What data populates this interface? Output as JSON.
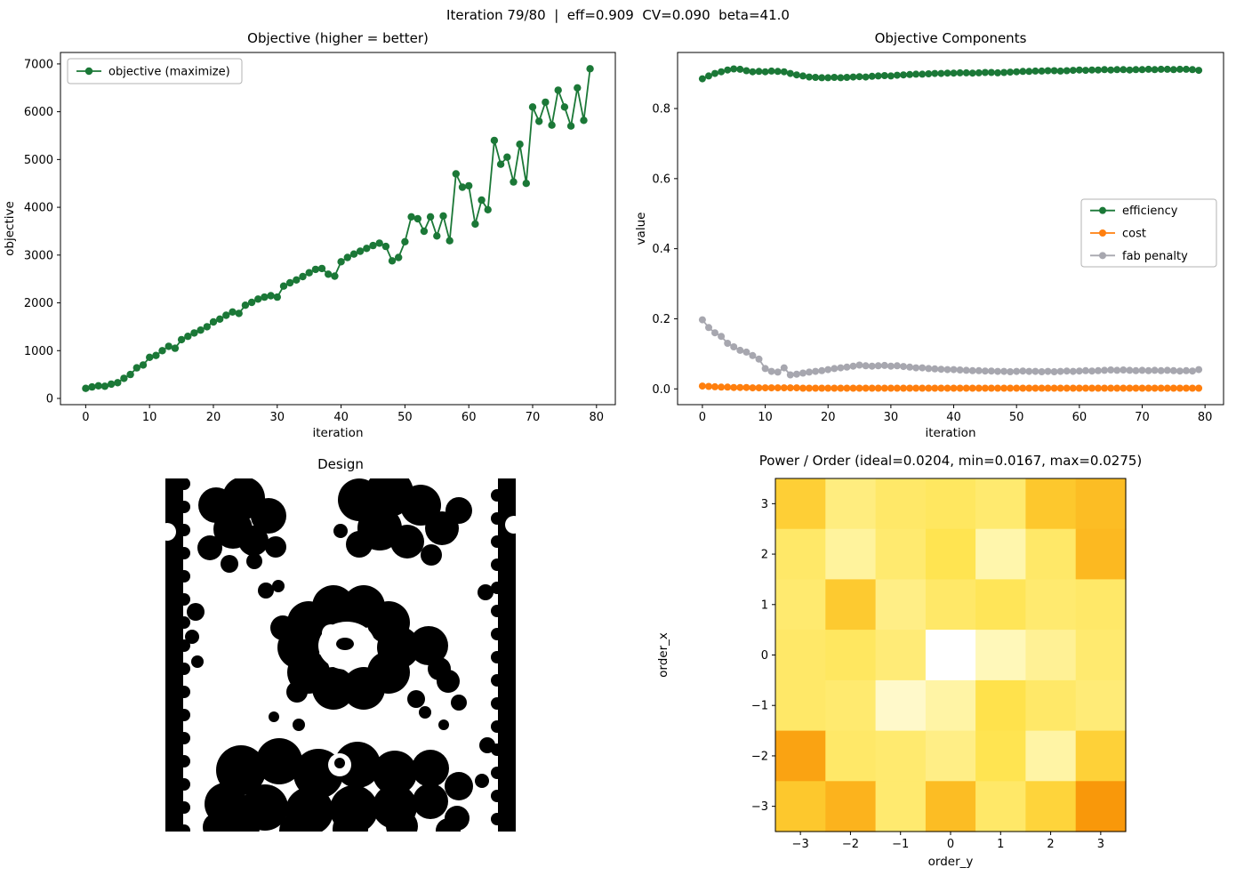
{
  "suptitle": "Iteration 79/80  |  eff=0.909  CV=0.090  beta=41.0",
  "colors": {
    "green": "#1b7837",
    "orange": "#ff7f0e",
    "gray": "#a7a7af",
    "design_fill": "#000000"
  },
  "chart_data": [
    {
      "id": "objective",
      "type": "line",
      "title": "Objective (higher = better)",
      "xlabel": "iteration",
      "ylabel": "objective",
      "xticks": [
        0,
        10,
        20,
        30,
        40,
        50,
        60,
        70,
        80
      ],
      "xtick_labels": [
        "0",
        "10",
        "20",
        "30",
        "40",
        "50",
        "60",
        "70",
        "80"
      ],
      "yticks": [
        0,
        1000,
        2000,
        3000,
        4000,
        5000,
        6000,
        7000
      ],
      "ytick_labels": [
        "0",
        "1000",
        "2000",
        "3000",
        "4000",
        "5000",
        "6000",
        "7000"
      ],
      "xlim": [
        -3.95,
        82.95
      ],
      "ylim": [
        -130,
        7240
      ],
      "legend_position": "upper-left",
      "series": [
        {
          "name": "objective (maximize)",
          "color": "#1b7837",
          "x_is_index": true,
          "y": [
            210,
            240,
            265,
            255,
            300,
            330,
            420,
            500,
            640,
            700,
            860,
            900,
            1000,
            1090,
            1050,
            1230,
            1300,
            1370,
            1430,
            1500,
            1600,
            1660,
            1740,
            1810,
            1780,
            1950,
            2010,
            2080,
            2120,
            2150,
            2120,
            2350,
            2420,
            2480,
            2550,
            2630,
            2700,
            2720,
            2600,
            2560,
            2860,
            2950,
            3020,
            3080,
            3140,
            3200,
            3250,
            3180,
            2880,
            2950,
            3280,
            3800,
            3760,
            3500,
            3800,
            3400,
            3820,
            3300,
            4700,
            4420,
            4450,
            3650,
            4150,
            3950,
            5400,
            4900,
            5050,
            4530,
            5320,
            4500,
            6100,
            5800,
            6200,
            5720,
            6450,
            6100,
            5700,
            6500,
            5820,
            6900
          ]
        }
      ]
    },
    {
      "id": "components",
      "type": "line",
      "title": "Objective Components",
      "xlabel": "iteration",
      "ylabel": "value",
      "xticks": [
        0,
        10,
        20,
        30,
        40,
        50,
        60,
        70,
        80
      ],
      "xtick_labels": [
        "0",
        "10",
        "20",
        "30",
        "40",
        "50",
        "60",
        "70",
        "80"
      ],
      "yticks": [
        0.0,
        0.2,
        0.4,
        0.6,
        0.8
      ],
      "ytick_labels": [
        "0.0",
        "0.2",
        "0.4",
        "0.6",
        "0.8"
      ],
      "xlim": [
        -3.95,
        82.95
      ],
      "ylim": [
        -0.045,
        0.96
      ],
      "legend_position": "center-right",
      "series": [
        {
          "name": "efficiency",
          "color": "#1b7837",
          "x_is_index": true,
          "y": [
            0.885,
            0.893,
            0.9,
            0.905,
            0.91,
            0.913,
            0.912,
            0.908,
            0.905,
            0.906,
            0.905,
            0.907,
            0.906,
            0.905,
            0.9,
            0.896,
            0.893,
            0.89,
            0.889,
            0.888,
            0.888,
            0.889,
            0.888,
            0.889,
            0.89,
            0.891,
            0.89,
            0.892,
            0.893,
            0.894,
            0.893,
            0.895,
            0.896,
            0.897,
            0.898,
            0.898,
            0.899,
            0.9,
            0.9,
            0.901,
            0.901,
            0.902,
            0.902,
            0.901,
            0.902,
            0.903,
            0.903,
            0.902,
            0.903,
            0.904,
            0.905,
            0.906,
            0.906,
            0.907,
            0.907,
            0.908,
            0.908,
            0.907,
            0.908,
            0.909,
            0.91,
            0.909,
            0.91,
            0.91,
            0.911,
            0.91,
            0.911,
            0.911,
            0.91,
            0.911,
            0.911,
            0.912,
            0.911,
            0.912,
            0.912,
            0.911,
            0.912,
            0.912,
            0.911,
            0.909
          ]
        },
        {
          "name": "cost",
          "color": "#ff7f0e",
          "x_is_index": true,
          "y": [
            0.008,
            0.007,
            0.006,
            0.005,
            0.005,
            0.004,
            0.004,
            0.004,
            0.003,
            0.003,
            0.003,
            0.003,
            0.003,
            0.003,
            0.003,
            0.003,
            0.002,
            0.002,
            0.002,
            0.002,
            0.002,
            0.002,
            0.002,
            0.002,
            0.002,
            0.002,
            0.002,
            0.002,
            0.002,
            0.002,
            0.002,
            0.002,
            0.002,
            0.002,
            0.002,
            0.002,
            0.002,
            0.002,
            0.002,
            0.002,
            0.002,
            0.002,
            0.002,
            0.002,
            0.002,
            0.002,
            0.002,
            0.002,
            0.002,
            0.002,
            0.002,
            0.002,
            0.002,
            0.002,
            0.002,
            0.002,
            0.002,
            0.002,
            0.002,
            0.002,
            0.002,
            0.002,
            0.002,
            0.002,
            0.002,
            0.002,
            0.002,
            0.002,
            0.002,
            0.002,
            0.002,
            0.002,
            0.002,
            0.002,
            0.002,
            0.002,
            0.002,
            0.002,
            0.002,
            0.002
          ]
        },
        {
          "name": "fab penalty",
          "color": "#a7a7af",
          "x_is_index": true,
          "y": [
            0.197,
            0.175,
            0.16,
            0.15,
            0.13,
            0.12,
            0.11,
            0.105,
            0.095,
            0.085,
            0.058,
            0.05,
            0.048,
            0.06,
            0.04,
            0.042,
            0.045,
            0.048,
            0.05,
            0.052,
            0.055,
            0.058,
            0.06,
            0.062,
            0.065,
            0.068,
            0.066,
            0.065,
            0.066,
            0.067,
            0.065,
            0.066,
            0.064,
            0.062,
            0.06,
            0.06,
            0.058,
            0.057,
            0.056,
            0.055,
            0.055,
            0.054,
            0.053,
            0.052,
            0.052,
            0.051,
            0.051,
            0.05,
            0.05,
            0.049,
            0.05,
            0.051,
            0.05,
            0.05,
            0.049,
            0.05,
            0.049,
            0.05,
            0.051,
            0.05,
            0.051,
            0.052,
            0.051,
            0.052,
            0.053,
            0.054,
            0.053,
            0.054,
            0.053,
            0.052,
            0.053,
            0.052,
            0.053,
            0.052,
            0.053,
            0.052,
            0.051,
            0.052,
            0.051,
            0.055
          ]
        }
      ]
    },
    {
      "id": "design",
      "type": "image",
      "title": "Design",
      "description": "binary black-and-white topology-optimized design pattern: vertical bars at left and right edges, blob clusters top and bottom, central irregular ring with hole and center dot"
    },
    {
      "id": "power_order",
      "type": "heatmap",
      "title": "Power / Order (ideal=0.0204, min=0.0167, max=0.0275)",
      "xlabel": "order_y",
      "ylabel": "order_x",
      "xticklabels": [
        "−3",
        "−2",
        "−1",
        "0",
        "1",
        "2",
        "3"
      ],
      "yticklabels": [
        "3",
        "2",
        "1",
        "0",
        "−1",
        "−2",
        "−3"
      ],
      "vmin": 0.0167,
      "vmax": 0.0275,
      "colormap": [
        "#ffffff",
        "#fff7b4",
        "#ffe34d",
        "#fdc328",
        "#f9980a"
      ],
      "values": [
        [
          0.0238,
          0.0208,
          0.0214,
          0.0216,
          0.0212,
          0.0244,
          0.0252
        ],
        [
          0.0214,
          0.02,
          0.0212,
          0.022,
          0.0196,
          0.0214,
          0.0254
        ],
        [
          0.0212,
          0.0242,
          0.0206,
          0.0214,
          0.0218,
          0.0212,
          0.0214
        ],
        [
          0.0214,
          0.0216,
          0.021,
          0.0167,
          0.0192,
          0.0202,
          0.0212
        ],
        [
          0.0214,
          0.0212,
          0.0186,
          0.0198,
          0.0222,
          0.0214,
          0.021
        ],
        [
          0.0268,
          0.0214,
          0.0212,
          0.0206,
          0.022,
          0.0198,
          0.0236
        ],
        [
          0.0244,
          0.0258,
          0.0212,
          0.0252,
          0.0214,
          0.0234,
          0.0275
        ]
      ]
    }
  ]
}
